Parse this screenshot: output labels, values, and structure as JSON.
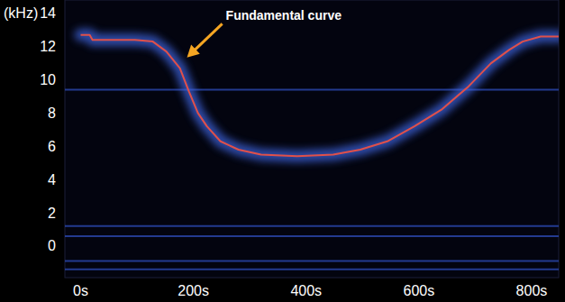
{
  "chart_data": {
    "type": "line",
    "y_label": "(kHz)",
    "annotation": {
      "text": "Fundamental curve",
      "x": 184,
      "y": 11.2
    },
    "xlim": [
      -28,
      848
    ],
    "ylim": [
      -1.9,
      14.8
    ],
    "xticks": [
      {
        "value": 0,
        "label": "0s"
      },
      {
        "value": 200,
        "label": "200s"
      },
      {
        "value": 400,
        "label": "400s"
      },
      {
        "value": 600,
        "label": "600s"
      },
      {
        "value": 800,
        "label": "800s"
      }
    ],
    "yticks": [
      0,
      2,
      4,
      6,
      8,
      10,
      12,
      14
    ],
    "grid": false,
    "bands": [
      9.4,
      1.2,
      0.6,
      -0.9,
      -1.4
    ],
    "x": [
      0,
      16,
      21,
      96,
      128,
      152,
      176,
      192,
      208,
      224,
      248,
      280,
      320,
      384,
      448,
      496,
      544,
      592,
      640,
      688,
      728,
      760,
      784,
      816,
      848
    ],
    "series": [
      {
        "color": "#e0504a",
        "line_style": "solid",
        "values": [
          12.7,
          12.7,
          12.4,
          12.4,
          12.3,
          11.7,
          10.7,
          9.3,
          8.0,
          7.2,
          6.3,
          5.8,
          5.5,
          5.4,
          5.5,
          5.8,
          6.3,
          7.2,
          8.2,
          9.6,
          11.0,
          11.8,
          12.3,
          12.6,
          12.6
        ]
      }
    ]
  }
}
